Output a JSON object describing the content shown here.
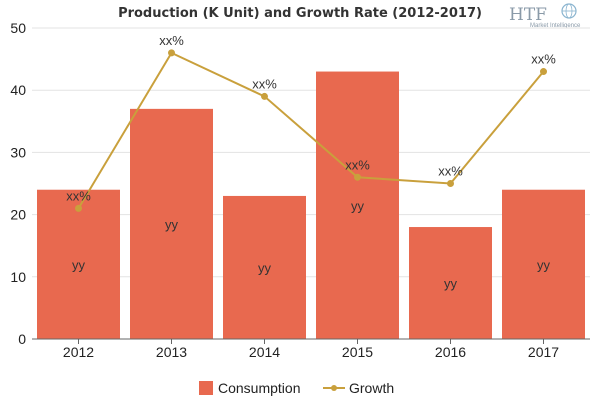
{
  "chart_data": {
    "type": "bar",
    "title": "Production (K Unit) and Growth Rate (2012-2017)",
    "categories": [
      "2012",
      "2013",
      "2014",
      "2015",
      "2016",
      "2017"
    ],
    "ylim": [
      0,
      50
    ],
    "yticks": [
      "0",
      "10",
      "20",
      "30",
      "40",
      "50"
    ],
    "grid": true,
    "legend_position": "bottom",
    "series": [
      {
        "name": "Consumption",
        "type": "bar",
        "color": "#e8694f",
        "values": [
          24,
          37,
          23,
          43,
          18,
          24
        ],
        "data_labels": [
          "yy",
          "yy",
          "yy",
          "yy",
          "yy",
          "yy"
        ]
      },
      {
        "name": "Growth",
        "type": "line",
        "color": "#c9a03c",
        "values": [
          21,
          46,
          39,
          26,
          25,
          43
        ],
        "data_labels": [
          "xx%",
          "xx%",
          "xx%",
          "xx%",
          "xx%",
          "xx%"
        ]
      }
    ]
  },
  "logo": {
    "brand": "HTF",
    "tagline": "Market Intelligence"
  }
}
